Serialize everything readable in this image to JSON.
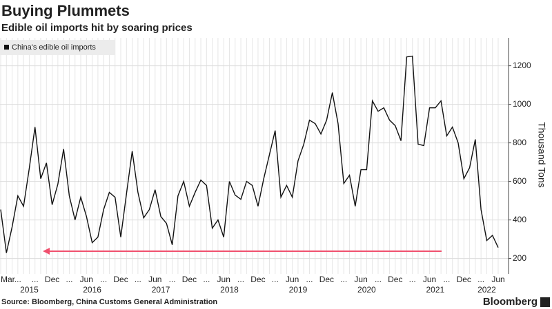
{
  "chart_data": {
    "type": "line",
    "title": "Buying Plummets",
    "subtitle": "Edible oil imports hit by soaring prices",
    "source": "Source: Bloomberg, China Customs General Administration",
    "brand": "Bloomberg",
    "y_label": "Thousand Tons",
    "x": [
      "2015-03",
      "2015-04",
      "2015-05",
      "2015-06",
      "2015-07",
      "2015-08",
      "2015-09",
      "2015-10",
      "2015-11",
      "2015-12",
      "2016-01",
      "2016-02",
      "2016-03",
      "2016-04",
      "2016-05",
      "2016-06",
      "2016-07",
      "2016-08",
      "2016-09",
      "2016-10",
      "2016-11",
      "2016-12",
      "2017-01",
      "2017-02",
      "2017-03",
      "2017-04",
      "2017-05",
      "2017-06",
      "2017-07",
      "2017-08",
      "2017-09",
      "2017-10",
      "2017-11",
      "2017-12",
      "2018-01",
      "2018-02",
      "2018-03",
      "2018-04",
      "2018-05",
      "2018-06",
      "2018-07",
      "2018-08",
      "2018-09",
      "2018-10",
      "2018-11",
      "2018-12",
      "2019-01",
      "2019-02",
      "2019-03",
      "2019-04",
      "2019-05",
      "2019-06",
      "2019-07",
      "2019-08",
      "2019-09",
      "2019-10",
      "2019-11",
      "2019-12",
      "2020-01",
      "2020-02",
      "2020-03",
      "2020-04",
      "2020-05",
      "2020-06",
      "2020-07",
      "2020-08",
      "2020-09",
      "2020-10",
      "2020-11",
      "2020-12",
      "2021-01",
      "2021-02",
      "2021-03",
      "2021-04",
      "2021-05",
      "2021-06",
      "2021-07",
      "2021-08",
      "2021-09",
      "2021-10",
      "2021-11",
      "2021-12",
      "2022-01",
      "2022-02",
      "2022-03",
      "2022-04",
      "2022-05",
      "2022-06"
    ],
    "series": [
      {
        "name": "China's edible oil imports",
        "color": "#111111",
        "values": [
          454,
          229,
          364,
          525,
          471,
          668,
          882,
          614,
          696,
          479,
          586,
          768,
          525,
          400,
          518,
          418,
          282,
          311,
          454,
          543,
          518,
          311,
          536,
          757,
          543,
          411,
          454,
          557,
          418,
          382,
          271,
          525,
          600,
          471,
          543,
          607,
          579,
          357,
          400,
          311,
          600,
          529,
          507,
          600,
          579,
          471,
          614,
          739,
          864,
          518,
          579,
          518,
          707,
          793,
          918,
          900,
          846,
          918,
          1061,
          900,
          589,
          632,
          471,
          661,
          661,
          1018,
          964,
          982,
          918,
          889,
          811,
          1246,
          1250,
          793,
          786,
          982,
          982,
          1018,
          836,
          882,
          800,
          614,
          671,
          818,
          454,
          293,
          320,
          257
        ]
      }
    ],
    "xticks": [
      {
        "value": "2015-03",
        "label": "Mar"
      },
      {
        "value": "2015-06",
        "label": "..."
      },
      {
        "value": "2015-09",
        "label": "..."
      },
      {
        "value": "2015-12",
        "label": "Dec"
      },
      {
        "value": "2016-03",
        "label": "..."
      },
      {
        "value": "2016-06",
        "label": "Jun"
      },
      {
        "value": "2016-09",
        "label": "..."
      },
      {
        "value": "2016-12",
        "label": "Dec"
      },
      {
        "value": "2017-03",
        "label": "..."
      },
      {
        "value": "2017-06",
        "label": "Jun"
      },
      {
        "value": "2017-09",
        "label": "..."
      },
      {
        "value": "2017-12",
        "label": "Dec"
      },
      {
        "value": "2018-03",
        "label": "..."
      },
      {
        "value": "2018-06",
        "label": "Jun"
      },
      {
        "value": "2018-09",
        "label": "..."
      },
      {
        "value": "2018-12",
        "label": "Dec"
      },
      {
        "value": "2019-03",
        "label": "..."
      },
      {
        "value": "2019-06",
        "label": "Jun"
      },
      {
        "value": "2019-09",
        "label": "..."
      },
      {
        "value": "2019-12",
        "label": "Dec"
      },
      {
        "value": "2020-03",
        "label": "..."
      },
      {
        "value": "2020-06",
        "label": "Jun"
      },
      {
        "value": "2020-09",
        "label": "..."
      },
      {
        "value": "2020-12",
        "label": "Dec"
      },
      {
        "value": "2021-03",
        "label": "..."
      },
      {
        "value": "2021-06",
        "label": "Jun"
      },
      {
        "value": "2021-09",
        "label": "..."
      },
      {
        "value": "2021-12",
        "label": "Dec"
      },
      {
        "value": "2022-03",
        "label": "..."
      },
      {
        "value": "2022-06",
        "label": "Jun"
      }
    ],
    "year_labels": [
      {
        "value": "2015-08",
        "label": "2015"
      },
      {
        "value": "2016-07",
        "label": "2016"
      },
      {
        "value": "2017-07",
        "label": "2017"
      },
      {
        "value": "2018-07",
        "label": "2018"
      },
      {
        "value": "2019-07",
        "label": "2019"
      },
      {
        "value": "2020-07",
        "label": "2020"
      },
      {
        "value": "2021-07",
        "label": "2021"
      },
      {
        "value": "2022-04",
        "label": "2022"
      }
    ],
    "ylim": [
      120,
      1345
    ],
    "yticks": [
      200,
      400,
      600,
      800,
      1000,
      1200
    ],
    "grid": true
  }
}
